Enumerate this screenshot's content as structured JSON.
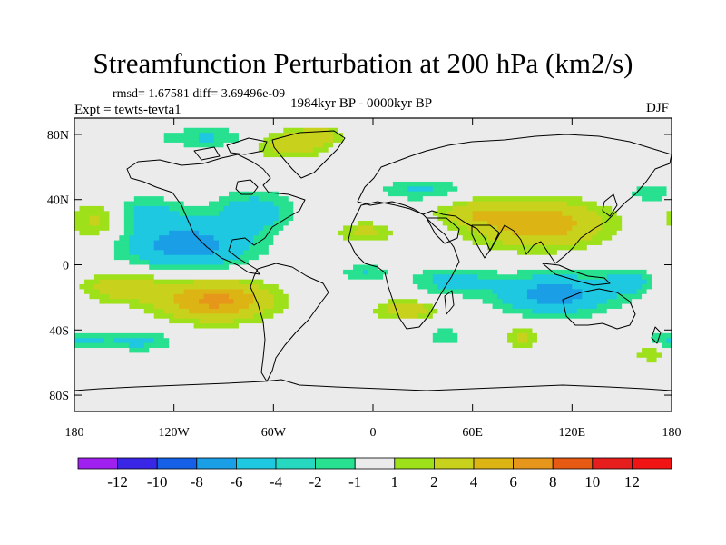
{
  "title": "Streamfunction Perturbation at 200 hPa (km2/s)",
  "stats": "rmsd= 1.67581 diff= 3.69496e-09",
  "experiment": "Expt = tewts-tevta1",
  "period": "1984kyr BP - 0000kyr BP",
  "season": "DJF",
  "axes": {
    "lat_labels": [
      "80N",
      "40N",
      "0",
      "40S",
      "80S"
    ],
    "lat_values": [
      80,
      40,
      0,
      -40,
      -80
    ],
    "lon_labels": [
      "180",
      "120W",
      "60W",
      "0",
      "60E",
      "120E",
      "180"
    ],
    "lon_values": [
      -180,
      -120,
      -60,
      0,
      60,
      120,
      180
    ]
  },
  "colorbar": {
    "labels": [
      "-12",
      "-10",
      "-8",
      "-6",
      "-4",
      "-2",
      "-1",
      "1",
      "2",
      "4",
      "6",
      "8",
      "10",
      "12"
    ],
    "colors": [
      "#a020f0",
      "#3a26e6",
      "#1560e6",
      "#1a9ee6",
      "#1ec8e0",
      "#27d8c0",
      "#27e090",
      "#ebebeb",
      "#9ee01a",
      "#c8d21c",
      "#dcb414",
      "#e6961a",
      "#e65a14",
      "#e61e1e",
      "#f01414"
    ]
  },
  "field_levels": [
    {
      "threshold": -4,
      "color": "#1a9ee6"
    },
    {
      "threshold": -2,
      "color": "#1ec8e0"
    },
    {
      "threshold": -1,
      "color": "#27e090"
    },
    {
      "threshold": 1,
      "color": "#ebebeb"
    },
    {
      "threshold": 2,
      "color": "#9ee01a"
    },
    {
      "threshold": 4,
      "color": "#c8d21c"
    },
    {
      "threshold": 6,
      "color": "#dcb414"
    },
    {
      "threshold": 99,
      "color": "#e6961a"
    }
  ],
  "field_centers": [
    {
      "lon": -112,
      "lat": 12,
      "value": -5.2,
      "rlon": 38,
      "rlat": 14
    },
    {
      "lon": -72,
      "lat": 33,
      "value": -3.0,
      "rlon": 24,
      "rlat": 12
    },
    {
      "lon": -140,
      "lat": 32,
      "value": -2.6,
      "rlon": 26,
      "rlat": 10
    },
    {
      "lon": -95,
      "lat": -22,
      "value": 6.6,
      "rlon": 32,
      "rlat": 12
    },
    {
      "lon": -150,
      "lat": -14,
      "value": 3.2,
      "rlon": 25,
      "rlat": 9
    },
    {
      "lon": -165,
      "lat": 28,
      "value": 3.0,
      "rlon": 18,
      "rlat": 12
    },
    {
      "lon": -32,
      "lat": 80,
      "value": 2.4,
      "rlon": 14,
      "rlat": 5
    },
    {
      "lon": -50,
      "lat": 74,
      "value": 3.3,
      "rlon": 22,
      "rlat": 8
    },
    {
      "lon": -100,
      "lat": 78,
      "value": -2.2,
      "rlon": 30,
      "rlat": 6
    },
    {
      "lon": 100,
      "lat": 25,
      "value": 5.6,
      "rlon": 38,
      "rlat": 14
    },
    {
      "lon": 62,
      "lat": 32,
      "value": 2.6,
      "rlon": 22,
      "rlat": 8
    },
    {
      "lon": 110,
      "lat": -18,
      "value": -5.0,
      "rlon": 35,
      "rlat": 12
    },
    {
      "lon": 48,
      "lat": -10,
      "value": -2.6,
      "rlon": 25,
      "rlat": 8
    },
    {
      "lon": 155,
      "lat": -10,
      "value": -2.6,
      "rlon": 14,
      "rlat": 8
    },
    {
      "lon": 20,
      "lat": -28,
      "value": 3.2,
      "rlon": 18,
      "rlat": 6
    },
    {
      "lon": -5,
      "lat": 20,
      "value": 2.6,
      "rlon": 16,
      "rlat": 6
    },
    {
      "lon": 30,
      "lat": 46,
      "value": -2.2,
      "rlon": 26,
      "rlat": 7
    },
    {
      "lon": 168,
      "lat": 44,
      "value": -2.0,
      "rlon": 14,
      "rlat": 6
    },
    {
      "lon": -178,
      "lat": -47,
      "value": -2.4,
      "rlon": 20,
      "rlat": 6
    },
    {
      "lon": -140,
      "lat": -47,
      "value": -2.4,
      "rlon": 20,
      "rlat": 6
    },
    {
      "lon": 44,
      "lat": -44,
      "value": -2.0,
      "rlon": 10,
      "rlat": 5
    },
    {
      "lon": 90,
      "lat": -45,
      "value": 2.3,
      "rlon": 12,
      "rlat": 6
    },
    {
      "lon": 168,
      "lat": -54,
      "value": 2.2,
      "rlon": 10,
      "rlat": 6
    },
    {
      "lon": -5,
      "lat": -5,
      "value": -2.0,
      "rlon": 14,
      "rlat": 6
    }
  ]
}
